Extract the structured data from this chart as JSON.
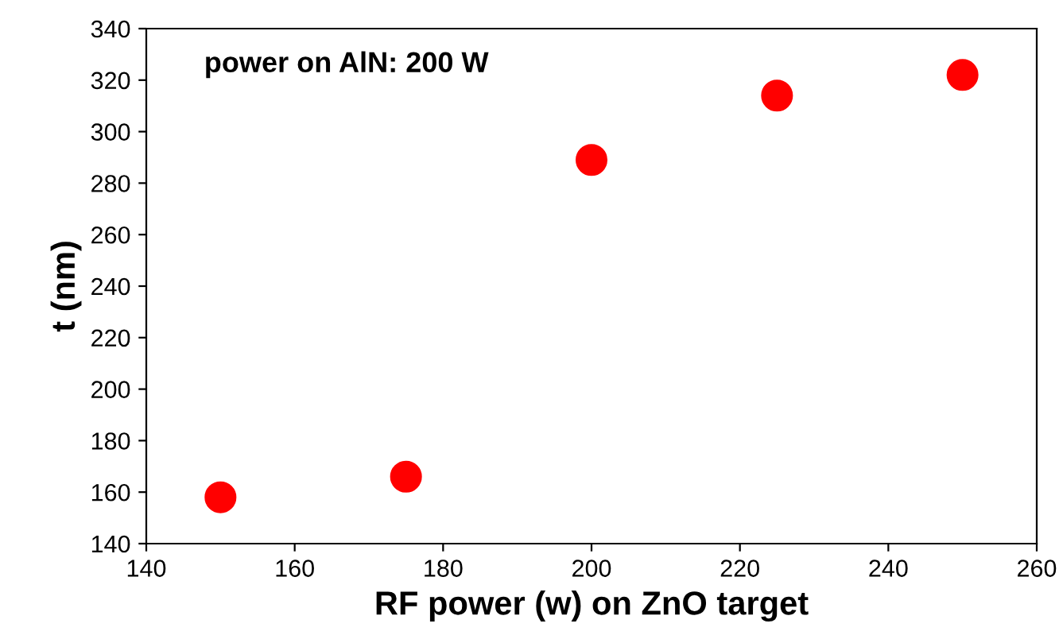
{
  "chart_data": {
    "type": "scatter",
    "xlabel": "RF power (w) on ZnO target",
    "ylabel": "t (nm)",
    "annotations": [
      "power on AlN: 200 W"
    ],
    "x": [
      150,
      175,
      200,
      225,
      250
    ],
    "values": [
      158,
      166,
      289,
      314,
      322
    ],
    "color": "#ff0000",
    "marker": "circle",
    "xlim": [
      140,
      260
    ],
    "xticks": [
      140,
      160,
      180,
      200,
      220,
      240,
      260
    ],
    "ylim": [
      140,
      340
    ],
    "yticks": [
      140,
      160,
      180,
      200,
      220,
      240,
      260,
      280,
      300,
      320,
      340
    ],
    "grid": false,
    "legend": false
  }
}
